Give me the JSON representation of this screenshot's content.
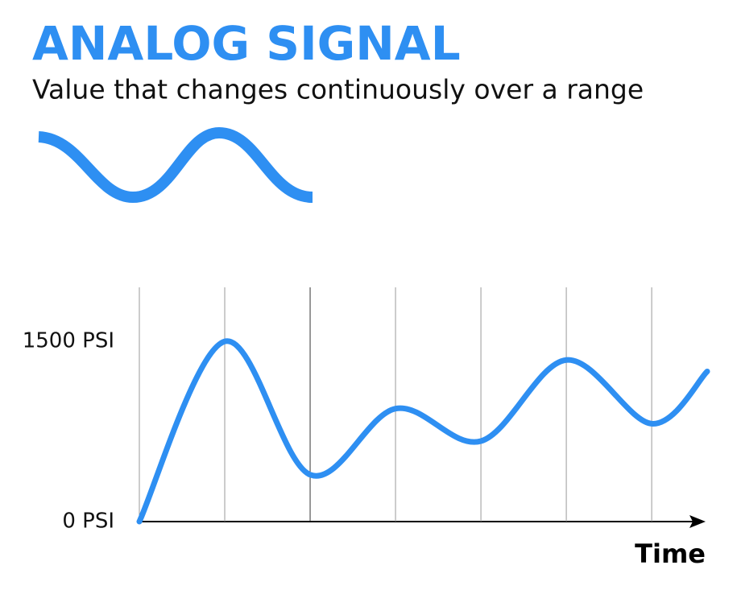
{
  "chart_data": {
    "type": "line",
    "title": "ANALOG SIGNAL",
    "subtitle": "Value that changes continuously over a range",
    "x_label": "Time",
    "x": [
      0,
      1,
      2,
      3,
      4,
      5,
      6,
      6.65
    ],
    "series": [
      {
        "color": "#2e8ff2",
        "values": [
          0,
          1500,
          390,
          940,
          670,
          1345,
          815,
          1250
        ]
      }
    ],
    "xlim": [
      0,
      6.65
    ],
    "xticks": [
      0,
      1,
      2,
      3,
      4,
      5,
      6
    ],
    "ylim": [
      0,
      1950
    ],
    "yticks": [
      {
        "value": 0,
        "label": "0 PSI"
      },
      {
        "value": 1500,
        "label": "1500 PSI"
      }
    ],
    "grid": true
  }
}
